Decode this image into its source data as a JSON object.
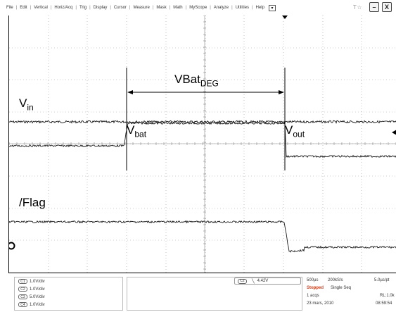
{
  "menubar": {
    "items": [
      "File",
      "Edit",
      "Vertical",
      "Horiz/Acq",
      "Trig",
      "Display",
      "Cursor",
      "Measure",
      "Mask",
      "Math",
      "MyScope",
      "Analyze",
      "Utilities",
      "Help"
    ],
    "dropdown_glyph": "▾",
    "logo": "T☆",
    "minimize": "–",
    "close": "X"
  },
  "waveform": {
    "labels": {
      "vin": "V",
      "vin_sub": "in",
      "vbat": "V",
      "vbat_sub": "bat",
      "vout": "V",
      "vout_sub": "out",
      "flag": "/Flag",
      "deg": "VBat",
      "deg_sub": "DEG"
    },
    "channels": [
      {
        "name": "Vin",
        "level": 1,
        "color": "#1a1a1a"
      },
      {
        "name": "Vbat",
        "level": 1,
        "color": "#1a1a1a"
      },
      {
        "name": "Vout",
        "level": 1,
        "color": "#1a1a1a"
      },
      {
        "name": "/Flag",
        "level": 1,
        "color": "#1a1a1a"
      }
    ]
  },
  "status": {
    "channels": [
      {
        "chip": "C1",
        "scale": "1.0V/div"
      },
      {
        "chip": "C2",
        "scale": "1.0V/div"
      },
      {
        "chip": "C3",
        "scale": "5.0V/div"
      },
      {
        "chip": "C4",
        "scale": "1.0V/div"
      }
    ],
    "trigger": {
      "chip": "C2",
      "slope": "╲",
      "level": "4.42V"
    },
    "acq": {
      "timebase": "500µs",
      "sample_rate": "200kS/s",
      "resolution": "5.0µs/pt",
      "state": "Stopped",
      "mode": "Single Seq",
      "acqs": "1 acqs",
      "record_length": "RL:1.0k",
      "date": "23 mars, 2010",
      "time": "08:59:54"
    }
  }
}
